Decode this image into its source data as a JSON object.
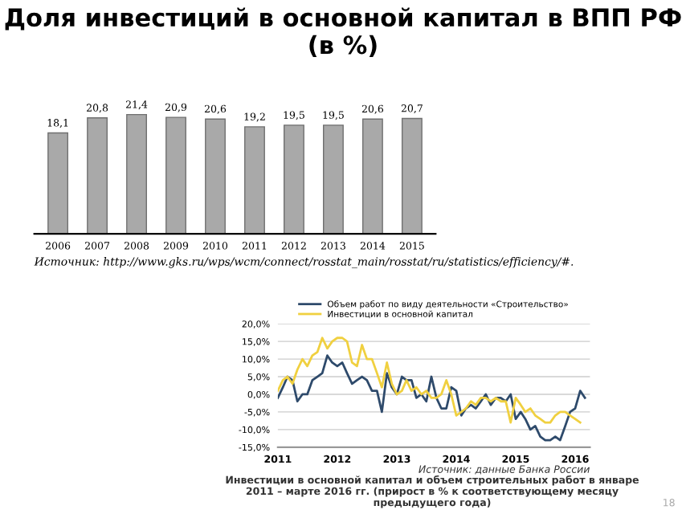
{
  "chart_data": [
    {
      "type": "bar",
      "title": "Доля инвестиций в основной капитал в ВПП РФ (в %)",
      "categories": [
        "2006",
        "2007",
        "2008",
        "2009",
        "2010",
        "2011",
        "2012",
        "2013",
        "2014",
        "2015"
      ],
      "values": [
        18.1,
        20.8,
        21.4,
        20.9,
        20.6,
        19.2,
        19.5,
        19.5,
        20.6,
        20.7
      ],
      "value_labels": [
        "18,1",
        "20,8",
        "21,4",
        "20,9",
        "20,6",
        "19,2",
        "19,5",
        "19,5",
        "20,6",
        "20,7"
      ],
      "color": "#a9a9a9",
      "tick_labels": "x",
      "annotations": [
        "Источник: http://www.gks.ru/wps/wcm/connect/rosstat_main/rosstat/ru/statistics/efficiency/#."
      ]
    },
    {
      "type": "line",
      "x": [
        "2011-01",
        "2011-02",
        "2011-03",
        "2011-04",
        "2011-05",
        "2011-06",
        "2011-07",
        "2011-08",
        "2011-09",
        "2011-10",
        "2011-11",
        "2011-12",
        "2012-01",
        "2012-02",
        "2012-03",
        "2012-04",
        "2012-05",
        "2012-06",
        "2012-07",
        "2012-08",
        "2012-09",
        "2012-10",
        "2012-11",
        "2012-12",
        "2013-01",
        "2013-02",
        "2013-03",
        "2013-04",
        "2013-05",
        "2013-06",
        "2013-07",
        "2013-08",
        "2013-09",
        "2013-10",
        "2013-11",
        "2013-12",
        "2014-01",
        "2014-02",
        "2014-03",
        "2014-04",
        "2014-05",
        "2014-06",
        "2014-07",
        "2014-08",
        "2014-09",
        "2014-10",
        "2014-11",
        "2014-12",
        "2015-01",
        "2015-02",
        "2015-03",
        "2015-04",
        "2015-05",
        "2015-06",
        "2015-07",
        "2015-08",
        "2015-09",
        "2015-10",
        "2015-11",
        "2015-12",
        "2016-01",
        "2016-02",
        "2016-03"
      ],
      "series": [
        {
          "name": "Объем работ по виду деятельности «Строительство»",
          "color": "#2e4a6b",
          "values": [
            -1,
            2,
            5,
            4,
            -2,
            0,
            0,
            4,
            5,
            6,
            11,
            9,
            8,
            9,
            6,
            3,
            4,
            5,
            4,
            1,
            1,
            -5,
            6,
            2,
            0,
            5,
            4,
            4,
            -1,
            0,
            -2,
            5,
            -1,
            -4,
            -4,
            2,
            1,
            -6,
            -4,
            -3,
            -4,
            -2,
            0,
            -3,
            -1,
            -1,
            -2,
            0,
            -7,
            -5,
            -7,
            -10,
            -9,
            -12,
            -13,
            -13,
            -12,
            -13,
            -9,
            -5,
            -4,
            1,
            -1
          ]
        },
        {
          "name": "Инвестиции в основной капитал",
          "color": "#f0d040",
          "values": [
            1,
            4,
            5,
            3,
            7,
            10,
            8,
            11,
            12,
            16,
            13,
            15,
            16,
            16,
            15,
            9,
            8,
            14,
            10,
            10,
            6,
            2,
            9,
            3,
            0,
            1,
            4,
            1,
            2,
            0,
            1,
            -1,
            -1,
            0,
            4,
            0,
            -6,
            -5,
            -4,
            -2,
            -3,
            -1,
            -1,
            -2,
            -1,
            -2,
            -2,
            -8,
            -1,
            -3,
            -5,
            -4,
            -6,
            -7,
            -8,
            -8,
            -6,
            -5,
            -5,
            -6,
            -7,
            -8,
            null
          ]
        }
      ],
      "xlim": [
        "2011-01",
        "2016-04"
      ],
      "xticks": [
        {
          "value": "2011-01",
          "label": "2011"
        },
        {
          "value": "2012-01",
          "label": "2012"
        },
        {
          "value": "2013-01",
          "label": "2013"
        },
        {
          "value": "2014-01",
          "label": "2014"
        },
        {
          "value": "2015-01",
          "label": "2015"
        },
        {
          "value": "2016-01",
          "label": "2016"
        }
      ],
      "ylim": [
        -15,
        20
      ],
      "yticks": [
        {
          "value": -15,
          "label": "-15,0%"
        },
        {
          "value": -10,
          "label": "-10,0%"
        },
        {
          "value": -5,
          "label": "-5,0%"
        },
        {
          "value": 0,
          "label": "0,0%"
        },
        {
          "value": 5,
          "label": "5,0%"
        },
        {
          "value": 10,
          "label": "10,0%"
        },
        {
          "value": 15,
          "label": "15,0%"
        },
        {
          "value": 20,
          "label": "20,0%"
        }
      ],
      "grid": "y",
      "legend": "top",
      "annotations": [
        "Источник: данные Банка России",
        "Инвестиции в основной капитал и объем строительных работ в январе 2011 – марте 2016 гг. (прирост в % к соответствующему месяцу предыдущего года)",
        "18"
      ]
    }
  ]
}
